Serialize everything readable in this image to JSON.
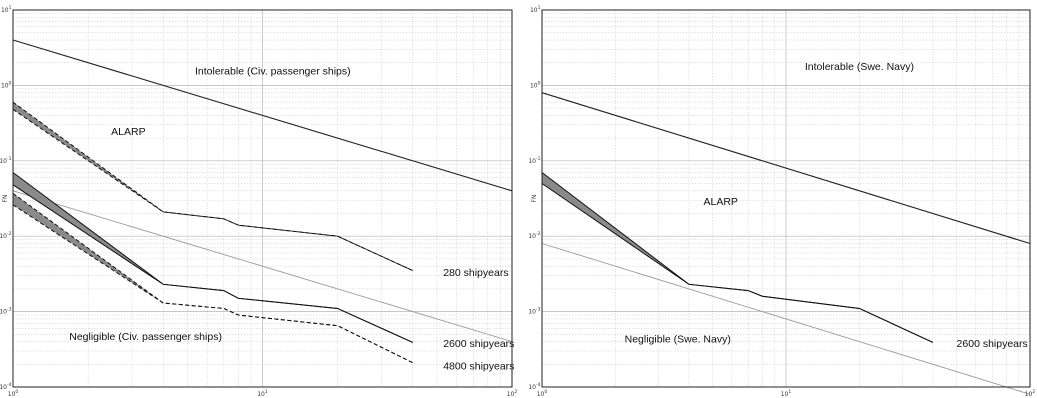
{
  "chart_data": [
    {
      "type": "line",
      "ylabel": "FN",
      "x_scale": "log",
      "y_scale": "log",
      "xlim": [
        1,
        100
      ],
      "ylim": [
        0.0001,
        10
      ],
      "grid": true,
      "x_ticks": [
        {
          "value": 1,
          "base": "10",
          "exp": "0"
        },
        {
          "value": 10,
          "base": "10",
          "exp": "1"
        },
        {
          "value": 100,
          "base": "10",
          "exp": "2"
        }
      ],
      "y_ticks": [
        {
          "value": 10,
          "base": "10",
          "exp": "1"
        },
        {
          "value": 1,
          "base": "10",
          "exp": "0"
        },
        {
          "value": 0.1,
          "base": "10",
          "exp": "-1"
        },
        {
          "value": 0.01,
          "base": "10",
          "exp": "-2"
        },
        {
          "value": 0.001,
          "base": "10",
          "exp": "-3"
        },
        {
          "value": 0.0001,
          "base": "10",
          "exp": "-4"
        }
      ],
      "regions": [
        {
          "text": "Intolerable (Civ. passenger ships)",
          "x": 11,
          "y": 1.4
        },
        {
          "text": "ALARP",
          "x": 2.9,
          "y": 0.22
        },
        {
          "text": "Negligible (Civ. passenger ships)",
          "x": 3.4,
          "y": 0.00042
        }
      ],
      "criteria_lines": [
        {
          "name": "intolerable",
          "color": "#222222",
          "x": [
            1,
            100
          ],
          "y": [
            4.0,
            0.04
          ]
        },
        {
          "name": "negligible",
          "color": "#9a9a9a",
          "x": [
            1,
            100
          ],
          "y": [
            0.04,
            0.0004
          ]
        }
      ],
      "series": [
        {
          "label": "280 shipyears",
          "style": "dashed",
          "label_at": [
            53,
            0.0033
          ],
          "x": [
            1,
            4,
            7,
            8,
            20,
            40
          ],
          "y": [
            0.6,
            0.021,
            0.017,
            0.014,
            0.01,
            0.0035
          ],
          "band_low": [
            0.48,
            0.021,
            0.017,
            0.014,
            0.01,
            0.0035
          ]
        },
        {
          "label": "2600 shipyears",
          "style": "solid",
          "label_at": [
            53,
            0.00038
          ],
          "x": [
            1,
            4,
            7,
            8,
            20,
            40
          ],
          "y": [
            0.07,
            0.0023,
            0.0019,
            0.0015,
            0.0011,
            0.00039
          ],
          "band_low": [
            0.048,
            0.0023,
            0.0019,
            0.0015,
            0.0011,
            0.00039
          ]
        },
        {
          "label": "4800 shipyears",
          "style": "dashed",
          "label_at": [
            53,
            0.00019
          ],
          "x": [
            1,
            4,
            7,
            8,
            20,
            40
          ],
          "y": [
            0.037,
            0.0013,
            0.0011,
            0.0009,
            0.00065,
            0.00021
          ],
          "band_low": [
            0.026,
            0.0013,
            0.0011,
            0.0009,
            0.00065,
            0.00021
          ]
        }
      ]
    },
    {
      "type": "line",
      "ylabel": "FN",
      "x_scale": "log",
      "y_scale": "log",
      "xlim": [
        1,
        100
      ],
      "ylim": [
        0.0001,
        10
      ],
      "grid": true,
      "x_ticks": [
        {
          "value": 1,
          "base": "10",
          "exp": "0"
        },
        {
          "value": 10,
          "base": "10",
          "exp": "1"
        },
        {
          "value": 100,
          "base": "10",
          "exp": "2"
        }
      ],
      "y_ticks": [
        {
          "value": 10,
          "base": "10",
          "exp": "1"
        },
        {
          "value": 1,
          "base": "10",
          "exp": "0"
        },
        {
          "value": 0.1,
          "base": "10",
          "exp": "-1"
        },
        {
          "value": 0.01,
          "base": "10",
          "exp": "-2"
        },
        {
          "value": 0.001,
          "base": "10",
          "exp": "-3"
        },
        {
          "value": 0.0001,
          "base": "10",
          "exp": "-4"
        }
      ],
      "regions": [
        {
          "text": "Intolerable (Swe. Navy)",
          "x": 20,
          "y": 1.6
        },
        {
          "text": "ALARP",
          "x": 5.4,
          "y": 0.026
        },
        {
          "text": "Negligible (Swe. Navy)",
          "x": 3.6,
          "y": 0.00039
        }
      ],
      "criteria_lines": [
        {
          "name": "intolerable",
          "color": "#222222",
          "x": [
            1,
            100
          ],
          "y": [
            0.8,
            0.008
          ]
        },
        {
          "name": "negligible",
          "color": "#9a9a9a",
          "x": [
            1,
            100
          ],
          "y": [
            0.008,
            8e-05
          ]
        }
      ],
      "series": [
        {
          "label": "2600 shipyears",
          "style": "solid",
          "label_at": [
            50,
            0.00038
          ],
          "x": [
            1,
            4,
            7,
            8,
            20,
            40
          ],
          "y": [
            0.07,
            0.0023,
            0.0019,
            0.0016,
            0.0011,
            0.00039
          ],
          "band_low": [
            0.05,
            0.0023,
            0.0019,
            0.0016,
            0.0011,
            0.00039
          ]
        }
      ]
    }
  ]
}
